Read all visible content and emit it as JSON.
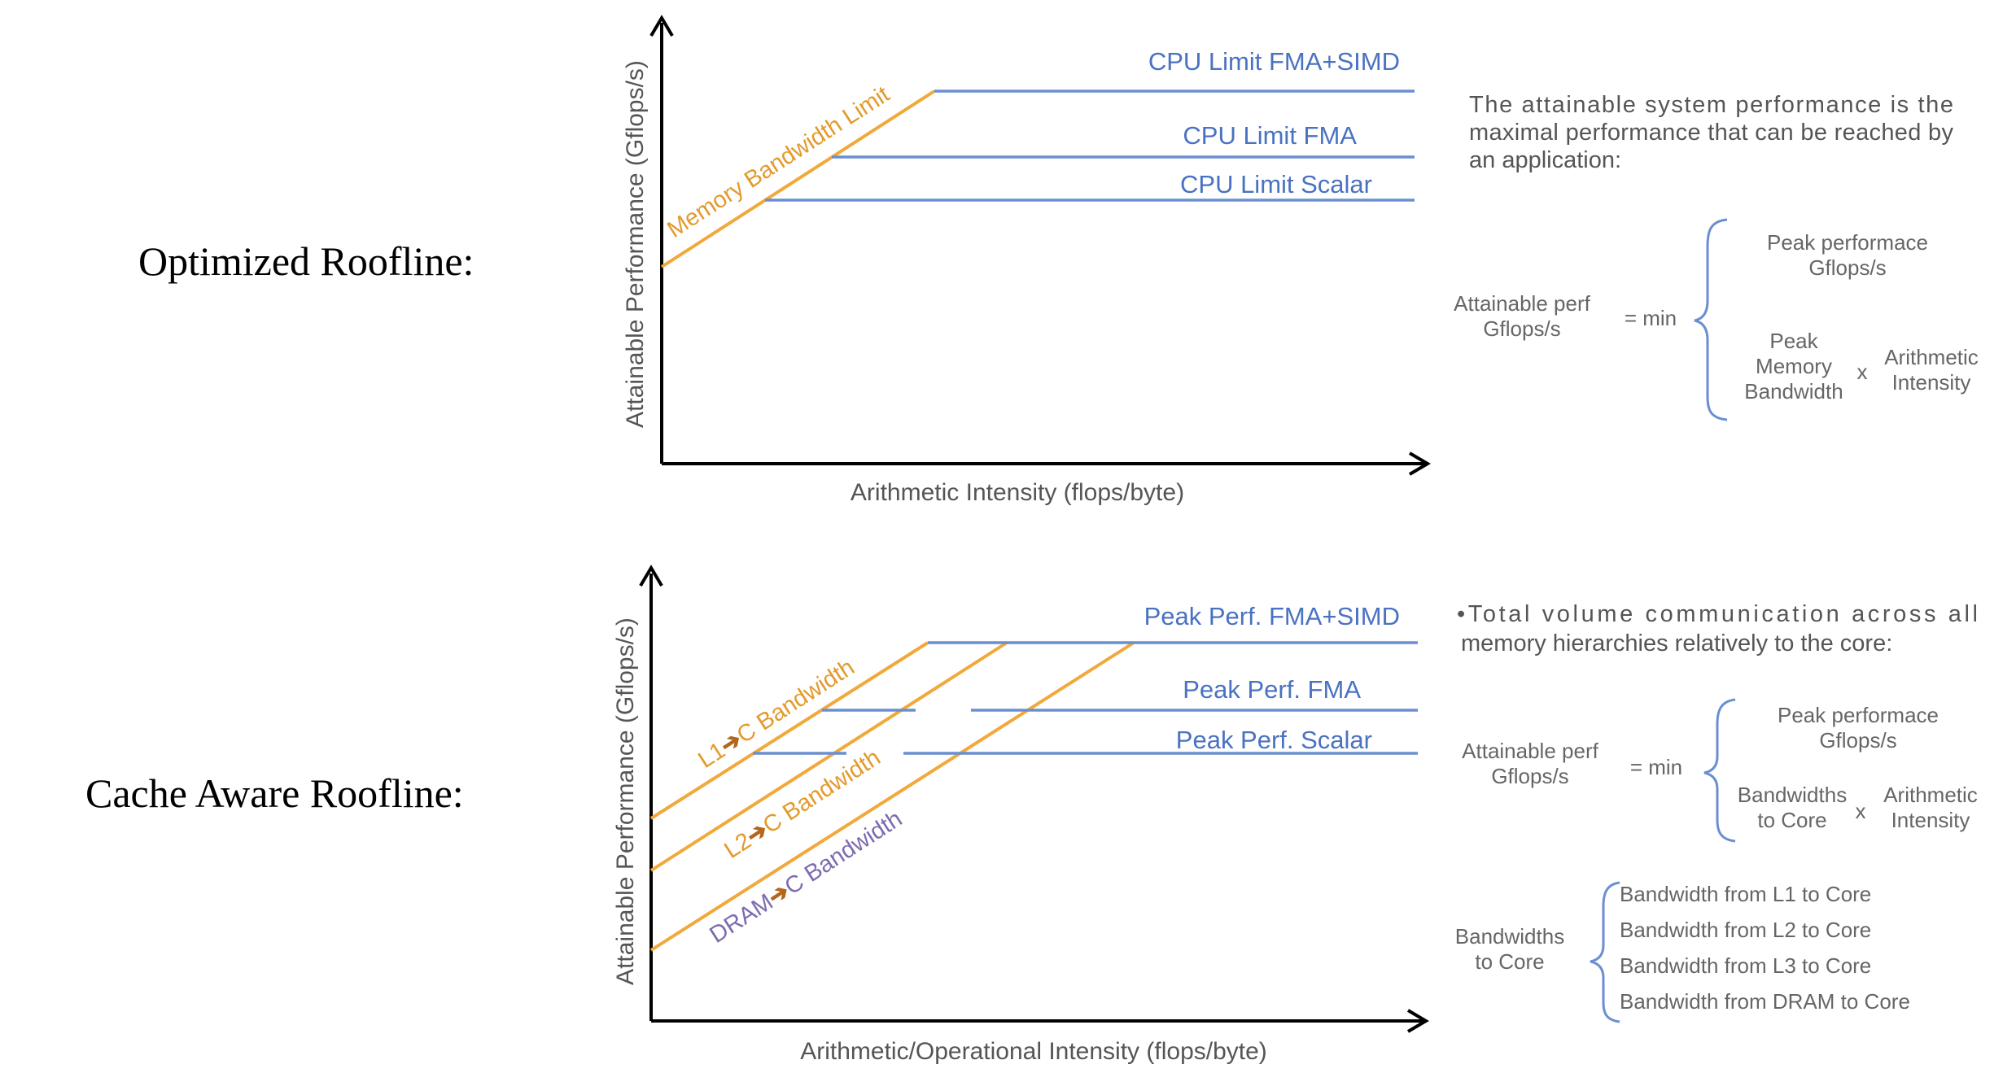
{
  "top": {
    "side_title": "Optimized Roofline:",
    "ylabel": "Attainable Performance (Gflops/s)",
    "xlabel": "Arithmetic Intensity (flops/byte)",
    "diagonal_label": "Memory Bandwidth Limit",
    "roof_labels": [
      "CPU Limit FMA+SIMD",
      "CPU Limit FMA",
      "CPU Limit Scalar"
    ],
    "description_lines": [
      "The attainable system performance is the",
      "maximal performance that can be reached by",
      "an application:"
    ],
    "formula": {
      "lhs": [
        "Attainable perf",
        "Gflops/s"
      ],
      "eq": "= min",
      "opt1": [
        "Peak performace",
        "Gflops/s"
      ],
      "opt2_left": [
        "Peak",
        "Memory",
        "Bandwidth"
      ],
      "times": "x",
      "opt2_right": [
        "Arithmetic",
        "Intensity"
      ]
    }
  },
  "bottom": {
    "side_title": "Cache Aware Roofline:",
    "ylabel": "Attainable Performance (Gflops/s)",
    "xlabel": "Arithmetic/Operational Intensity (flops/byte)",
    "diag_labels": [
      {
        "prefix": "L1",
        "arrow": "➔",
        "suffix": "C Bandwidth"
      },
      {
        "prefix": "L2",
        "arrow": "➔",
        "suffix": "C Bandwidth"
      },
      {
        "prefix": "DRAM",
        "arrow": "➔",
        "suffix": "C Bandwidth"
      }
    ],
    "roof_labels": [
      "Peak Perf. FMA+SIMD",
      "Peak Perf. FMA",
      "Peak Perf. Scalar"
    ],
    "description_lines": [
      "•Total volume communication across all",
      "memory hierarchies relatively to the core:"
    ],
    "formula": {
      "lhs": [
        "Attainable perf",
        "Gflops/s"
      ],
      "eq": "= min",
      "opt1": [
        "Peak performace",
        "Gflops/s"
      ],
      "opt2_left": [
        "Bandwidths",
        "to Core"
      ],
      "times": "x",
      "opt2_right": [
        "Arithmetic",
        "Intensity"
      ]
    },
    "bw_lhs": [
      "Bandwidths",
      "to Core"
    ],
    "bw_items": [
      "Bandwidth from L1 to Core",
      "Bandwidth from L2 to Core",
      "Bandwidth from L3 to Core",
      "Bandwidth from DRAM to Core"
    ]
  }
}
